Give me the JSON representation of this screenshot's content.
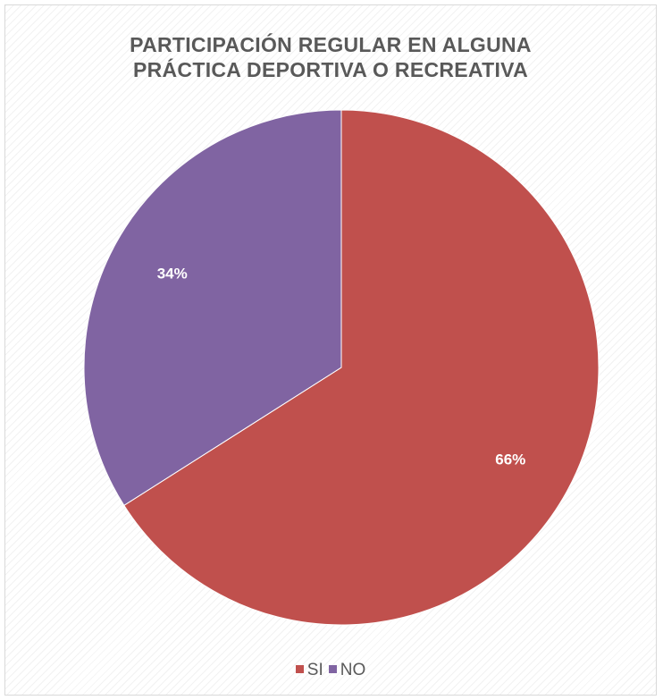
{
  "chart_data": {
    "type": "pie",
    "title": [
      "PARTICIPACIÓN REGULAR EN ALGUNA",
      "PRÁCTICA DEPORTIVA O RECREATIVA"
    ],
    "categories": [
      "SI",
      "NO"
    ],
    "values": [
      66,
      34
    ],
    "data_labels": [
      "66%",
      "34%"
    ],
    "colors": [
      "#c0504d",
      "#8064a2"
    ],
    "legend_position": "bottom"
  }
}
